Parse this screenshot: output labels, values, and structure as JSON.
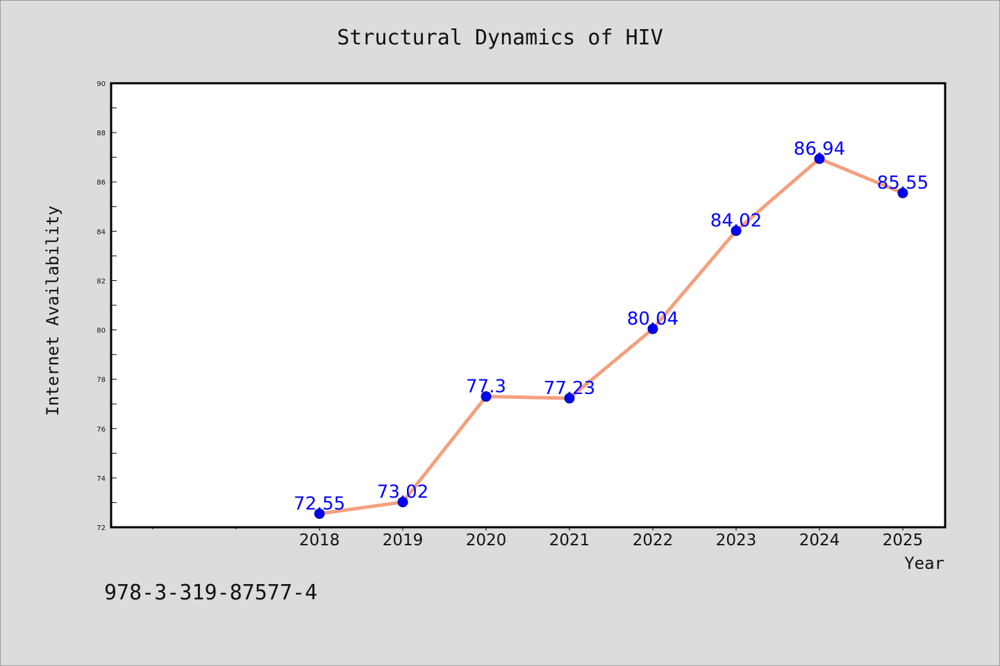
{
  "chart_data": {
    "type": "line",
    "title": "Structural Dynamics of HIV",
    "xlabel": "Year",
    "ylabel": "Internet Availability",
    "x": [
      "2018",
      "2019",
      "2020",
      "2021",
      "2022",
      "2023",
      "2024",
      "2025"
    ],
    "values": [
      72.55,
      73.02,
      77.3,
      77.23,
      80.04,
      84.02,
      86.94,
      85.55
    ],
    "data_labels": [
      "72.55",
      "73.02",
      "77.3",
      "77.23",
      "80.04",
      "84.02",
      "86.94",
      "85.55"
    ],
    "ylim": [
      72,
      90
    ],
    "yticks": [
      "72",
      "74",
      "76",
      "78",
      "80",
      "82",
      "84",
      "86",
      "88",
      "90"
    ],
    "grid": false,
    "line_color": "#f4a07e",
    "marker_color": "#0000ff",
    "label_color": "#0000ff"
  },
  "footnote": "978-3-319-87577-4"
}
